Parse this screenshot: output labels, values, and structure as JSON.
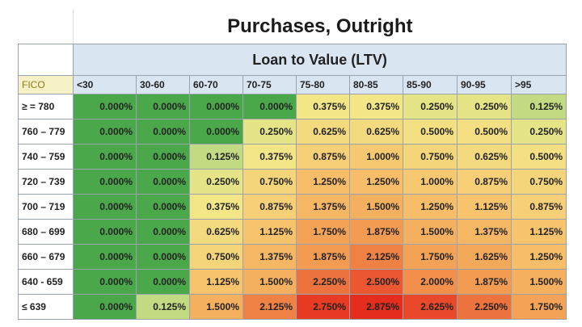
{
  "title": "Purchases, Outright",
  "subtitle": "Loan to Value (LTV)",
  "corner_label": "FICO",
  "columns": [
    "<30",
    "30-60",
    "60-70",
    "70-75",
    "75-80",
    "80-85",
    "85-90",
    "90-95",
    ">95"
  ],
  "rows": [
    {
      "label": "≥ = 780",
      "values": [
        "0.000%",
        "0.000%",
        "0.000%",
        "0.000%",
        "0.375%",
        "0.375%",
        "0.250%",
        "0.250%",
        "0.125%"
      ]
    },
    {
      "label": "760 – 779",
      "values": [
        "0.000%",
        "0.000%",
        "0.000%",
        "0.250%",
        "0.625%",
        "0.625%",
        "0.500%",
        "0.500%",
        "0.250%"
      ]
    },
    {
      "label": "740 – 759",
      "values": [
        "0.000%",
        "0.000%",
        "0.125%",
        "0.375%",
        "0.875%",
        "1.000%",
        "0.750%",
        "0.625%",
        "0.500%"
      ]
    },
    {
      "label": "720 – 739",
      "values": [
        "0.000%",
        "0.000%",
        "0.250%",
        "0.750%",
        "1.250%",
        "1.250%",
        "1.000%",
        "0.875%",
        "0.750%"
      ]
    },
    {
      "label": "700 – 719",
      "values": [
        "0.000%",
        "0.000%",
        "0.375%",
        "0.875%",
        "1.375%",
        "1.500%",
        "1.250%",
        "1.125%",
        "0.875%"
      ]
    },
    {
      "label": "680 – 699",
      "values": [
        "0.000%",
        "0.000%",
        "0.625%",
        "1.125%",
        "1.750%",
        "1.875%",
        "1.500%",
        "1.375%",
        "1.125%"
      ]
    },
    {
      "label": "660 – 679",
      "values": [
        "0.000%",
        "0.000%",
        "0.750%",
        "1.375%",
        "1.875%",
        "2.125%",
        "1.750%",
        "1.625%",
        "1.250%"
      ]
    },
    {
      "label": "640 - 659",
      "values": [
        "0.000%",
        "0.000%",
        "1.125%",
        "1.500%",
        "2.250%",
        "2.500%",
        "2.000%",
        "1.875%",
        "1.500%"
      ]
    },
    {
      "label": "≤ 639",
      "values": [
        "0.000%",
        "0.125%",
        "1.500%",
        "2.125%",
        "2.750%",
        "2.875%",
        "2.625%",
        "2.250%",
        "1.750%"
      ]
    }
  ],
  "colors": {
    "green": "#4aa84a",
    "yellow": "#f3e98a",
    "orange": "#f29a50",
    "red": "#e52a1c",
    "header_blue": "#d9e5f1"
  }
}
